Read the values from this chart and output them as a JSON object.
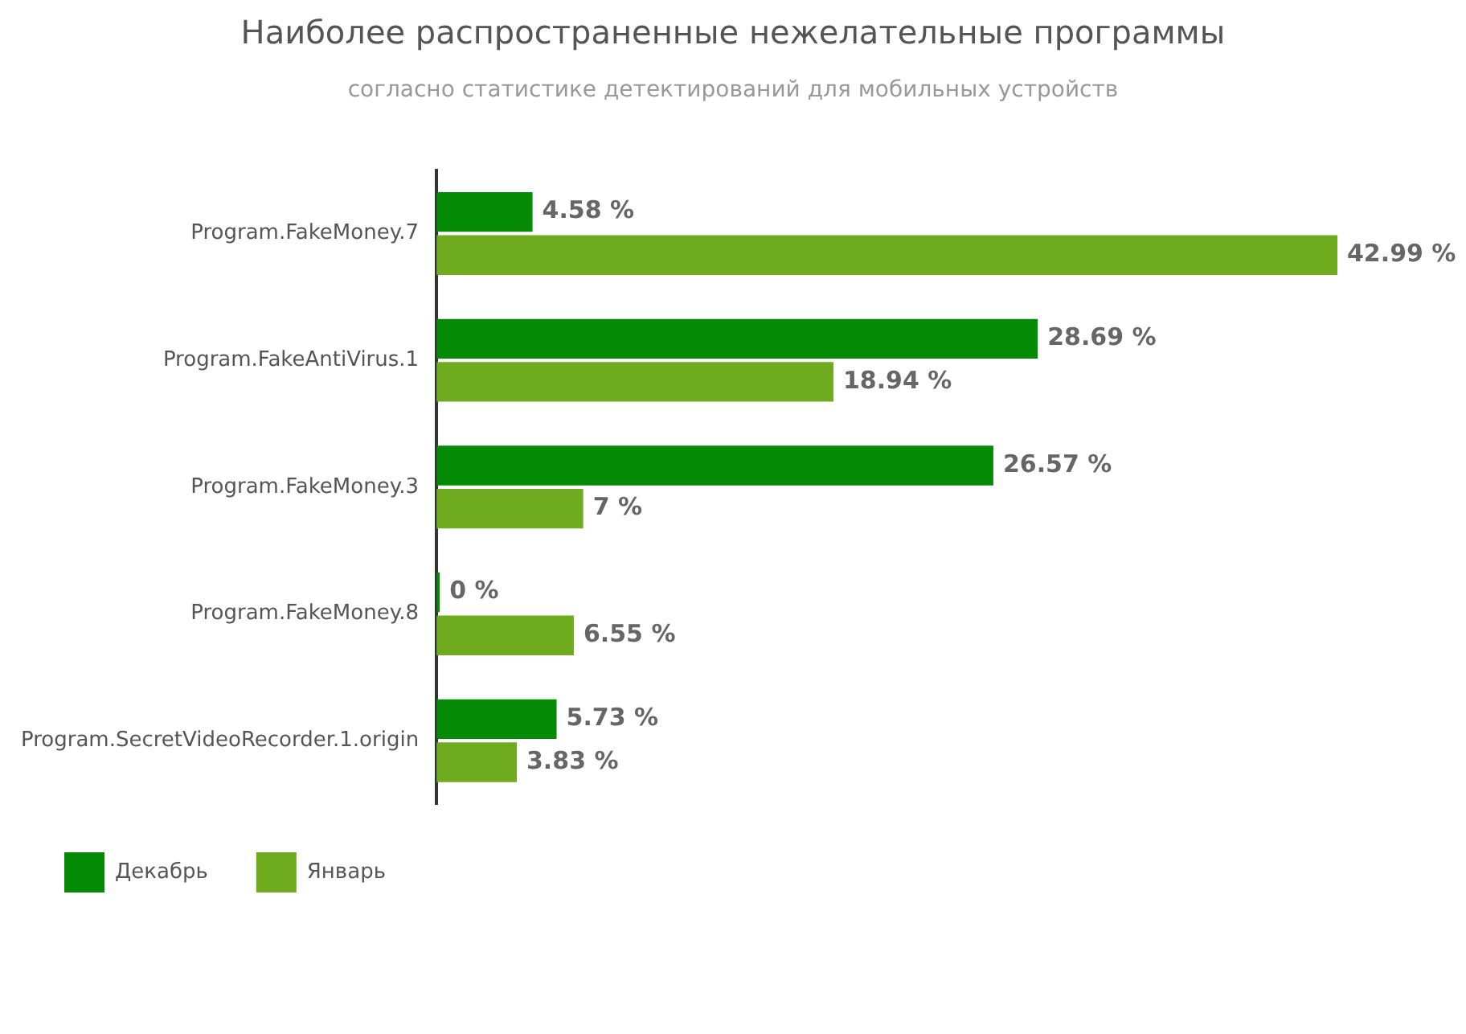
{
  "chart_data": {
    "type": "bar",
    "orientation": "horizontal",
    "title": "Наиболее распространенные нежелательные программы",
    "subtitle": "согласно статистике детектирований для мобильных устройств",
    "categories": [
      "Program.FakeMoney.7",
      "Program.FakeAntiVirus.1",
      "Program.FakeMoney.3",
      "Program.FakeMoney.8",
      "Program.SecretVideoRecorder.1.origin"
    ],
    "series": [
      {
        "name": "Декабрь",
        "color": "#058a05",
        "values": [
          4.58,
          28.69,
          26.57,
          0,
          5.73
        ],
        "value_labels": [
          "4.58 %",
          "28.69 %",
          "26.57 %",
          "0 %",
          "5.73 %"
        ]
      },
      {
        "name": "Январь",
        "color": "#6eab1e",
        "values": [
          42.99,
          18.94,
          7,
          6.55,
          3.83
        ],
        "value_labels": [
          "42.99 %",
          "18.94 %",
          "7 %",
          "6.55 %",
          "3.83 %"
        ]
      }
    ],
    "legend": "bottom left",
    "grid": false
  }
}
